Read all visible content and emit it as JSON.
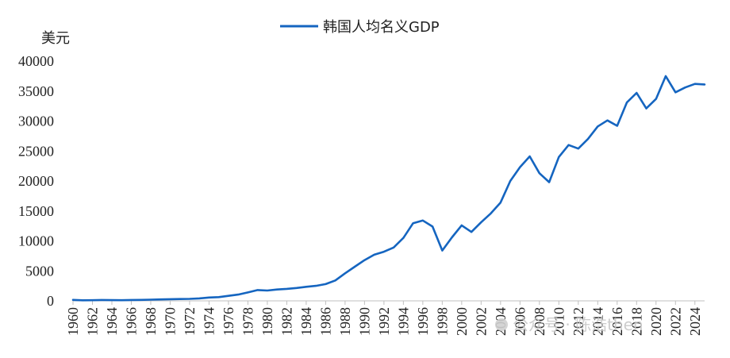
{
  "chart_data": {
    "type": "line",
    "ylabel": "美元",
    "xlabel": "",
    "ylim": [
      0,
      40000
    ],
    "yticks": [
      0,
      5000,
      10000,
      15000,
      20000,
      25000,
      30000,
      35000,
      40000
    ],
    "xlim": [
      1960,
      2025
    ],
    "xticks": [
      1960,
      1962,
      1964,
      1966,
      1968,
      1970,
      1972,
      1974,
      1976,
      1978,
      1980,
      1982,
      1984,
      1986,
      1988,
      1990,
      1992,
      1994,
      1996,
      1998,
      2000,
      2002,
      2004,
      2006,
      2008,
      2010,
      2012,
      2014,
      2016,
      2018,
      2020,
      2022,
      2024
    ],
    "legend_position": "top-center",
    "grid": false,
    "series": [
      {
        "name": "韩国人均名义GDP",
        "color": "#1565c0",
        "x": [
          1960,
          1961,
          1962,
          1963,
          1964,
          1965,
          1966,
          1967,
          1968,
          1969,
          1970,
          1971,
          1972,
          1973,
          1974,
          1975,
          1976,
          1977,
          1978,
          1979,
          1980,
          1981,
          1982,
          1983,
          1984,
          1985,
          1986,
          1987,
          1988,
          1989,
          1990,
          1991,
          1992,
          1993,
          1994,
          1995,
          1996,
          1997,
          1998,
          1999,
          2000,
          2001,
          2002,
          2003,
          2004,
          2005,
          2006,
          2007,
          2008,
          2009,
          2010,
          2011,
          2012,
          2013,
          2014,
          2015,
          2016,
          2017,
          2018,
          2019,
          2020,
          2021,
          2022,
          2023,
          2024,
          2025
        ],
        "values": [
          160,
          95,
          110,
          145,
          120,
          110,
          140,
          165,
          195,
          245,
          280,
          305,
          325,
          410,
          560,
          620,
          830,
          1050,
          1400,
          1800,
          1720,
          1900,
          2000,
          2150,
          2350,
          2500,
          2800,
          3400,
          4600,
          5700,
          6800,
          7700,
          8200,
          8900,
          10500,
          12950,
          13400,
          12400,
          8400,
          10600,
          12600,
          11500,
          13100,
          14600,
          16400,
          20000,
          22300,
          24100,
          21300,
          19800,
          24000,
          26000,
          25400,
          27000,
          29100,
          30100,
          29200,
          33100,
          34700,
          32100,
          33700,
          37500,
          34800,
          35600,
          36200,
          36100
        ]
      }
    ]
  },
  "watermark": "公众号 · 陈浩then"
}
